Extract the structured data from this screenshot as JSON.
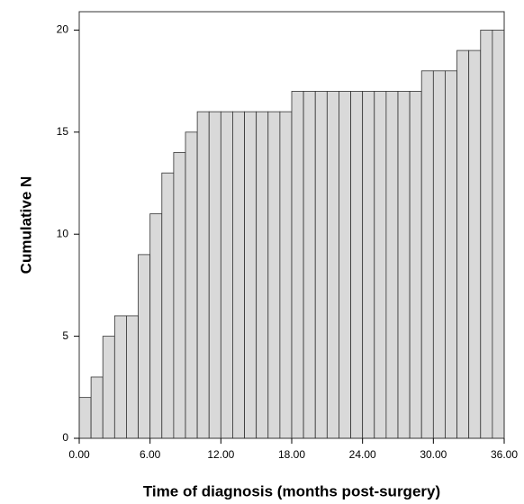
{
  "chart_data": {
    "type": "histogram",
    "x_label": "Time of diagnosis (months post-surgery)",
    "y_label": "Cumulative N",
    "bins": [
      0,
      1,
      2,
      3,
      4,
      5,
      6,
      7,
      8,
      9,
      10,
      11,
      12,
      13,
      14,
      15,
      16,
      17,
      18,
      19,
      20,
      21,
      22,
      23,
      24,
      25,
      26,
      27,
      28,
      29,
      30,
      31,
      32,
      33,
      34,
      35,
      36
    ],
    "values": [
      2,
      3,
      5,
      6,
      6,
      9,
      11,
      13,
      14,
      15,
      16,
      16,
      16,
      16,
      16,
      16,
      16,
      16,
      17,
      17,
      17,
      17,
      17,
      17,
      17,
      17,
      17,
      17,
      17,
      18,
      18,
      18,
      19,
      19,
      20,
      20
    ],
    "color": "#d9d9d9",
    "xlim": [
      0,
      36
    ],
    "ylim": [
      0,
      20.9
    ],
    "xticks": [
      {
        "value": 0,
        "label": "0.00"
      },
      {
        "value": 6,
        "label": "6.00"
      },
      {
        "value": 12,
        "label": "12.00"
      },
      {
        "value": 18,
        "label": "18.00"
      },
      {
        "value": 24,
        "label": "24.00"
      },
      {
        "value": 30,
        "label": "30.00"
      },
      {
        "value": 36,
        "label": "36.00"
      }
    ],
    "yticks": [
      0,
      5,
      10,
      15,
      20
    ]
  }
}
